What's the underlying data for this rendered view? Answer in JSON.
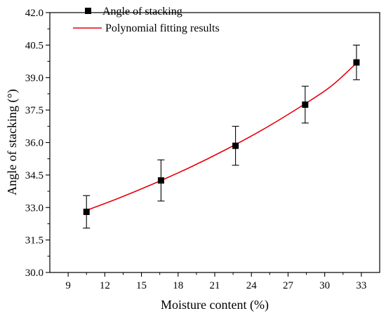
{
  "chart_data": {
    "type": "scatter",
    "xlabel": "Moisture content (%)",
    "ylabel": "Angle of stacking (°)",
    "xlim": [
      7.5,
      34.5
    ],
    "ylim": [
      30.0,
      42.0
    ],
    "xticks": [
      "9",
      "12",
      "15",
      "18",
      "21",
      "24",
      "27",
      "30",
      "33"
    ],
    "yticks": [
      "30.0",
      "31.5",
      "33.0",
      "34.5",
      "36.0",
      "37.5",
      "39.0",
      "40.5",
      "42.0"
    ],
    "legend_position": "top-left",
    "series": [
      {
        "name": "Angle of stacking",
        "kind": "scatter",
        "marker": "square",
        "color": "#000000",
        "x": [
          10.5,
          16.6,
          22.7,
          28.4,
          32.6
        ],
        "y": [
          32.8,
          34.25,
          35.85,
          37.75,
          39.7
        ],
        "error": [
          0.75,
          0.95,
          0.9,
          0.85,
          0.8
        ]
      },
      {
        "name": "Polynomial fitting results",
        "kind": "line",
        "color": "#e8000b",
        "x": [
          10.5,
          13.0,
          16.0,
          19.0,
          22.0,
          25.0,
          28.0,
          30.5,
          32.6
        ],
        "y": [
          32.87,
          33.4,
          34.1,
          34.86,
          35.7,
          36.62,
          37.65,
          38.59,
          39.67
        ]
      }
    ]
  }
}
